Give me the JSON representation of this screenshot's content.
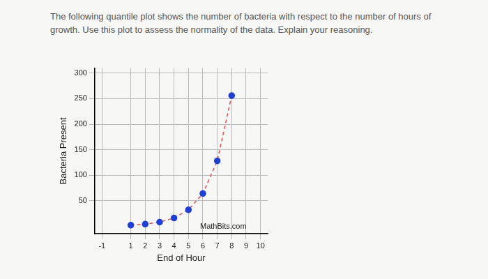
{
  "question": "The following quantile plot shows the number of bacteria with respect to the number of hours of growth. Use this plot to assess the normality of the data. Explain your reasoning.",
  "chart_data": {
    "type": "line",
    "watermark": "MathBits.com",
    "x_label": "End of Hour",
    "y_label": "Bacteria Present",
    "x": [
      1,
      2,
      3,
      4,
      5,
      6,
      7,
      8
    ],
    "values": [
      2,
      4,
      8,
      16,
      32,
      64,
      128,
      256
    ],
    "color": "#1f3fd9",
    "line_color": "#e05050",
    "marker": "circle",
    "line_style": "dashed",
    "xlim": [
      -1.5,
      10.5
    ],
    "xticks": [
      -1,
      1,
      2,
      3,
      4,
      5,
      6,
      7,
      8,
      9,
      10
    ],
    "ylim": [
      -15,
      310
    ],
    "yticks": [
      50,
      100,
      150,
      200,
      250,
      300
    ],
    "grid": true
  }
}
